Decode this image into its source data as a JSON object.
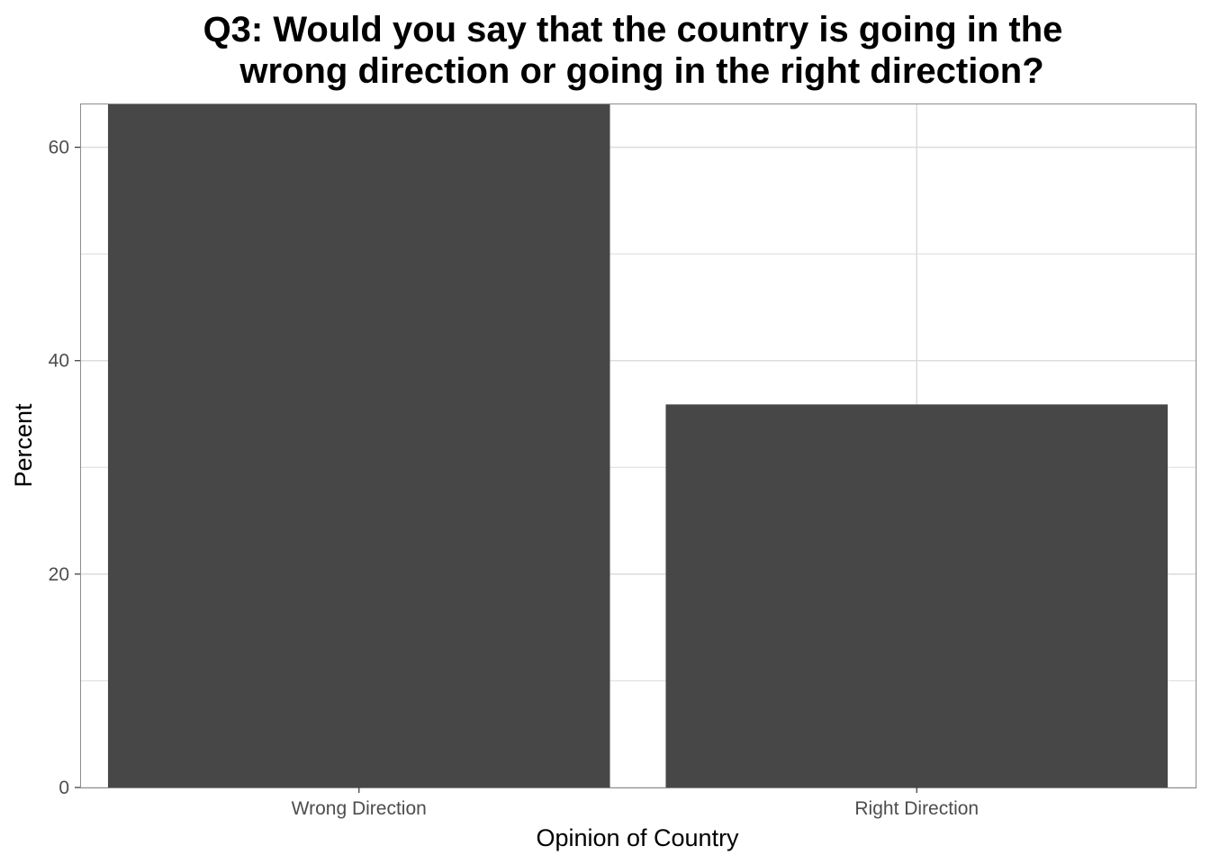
{
  "chart_data": {
    "type": "bar",
    "title_lines": [
      "Q3: Would you say that the country is going in the",
      "wrong direction or going in the right direction?"
    ],
    "xlabel": "Opinion of Country",
    "ylabel": "Percent",
    "categories": [
      "Wrong Direction",
      "Right Direction"
    ],
    "values": [
      64.1,
      35.9
    ],
    "ylim": [
      0,
      64.1
    ],
    "y_ticks": [
      0,
      20,
      40,
      60
    ],
    "y_tick_labels": [
      "0",
      "20",
      "40",
      "60"
    ],
    "grid": true,
    "bar_color": "#474747",
    "grid_color": "#dcdcdc",
    "panel_border_color": "#8c8c8c"
  }
}
